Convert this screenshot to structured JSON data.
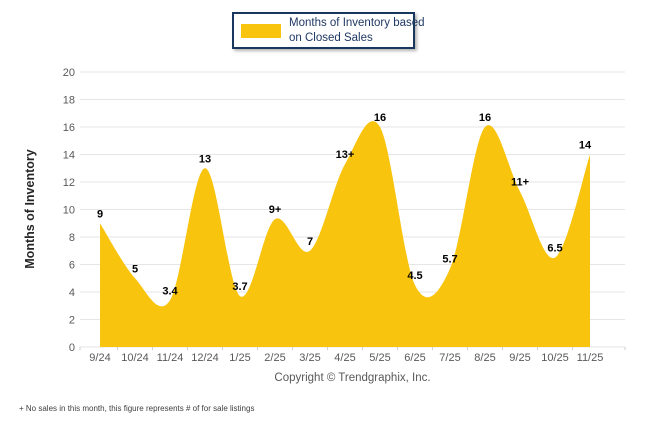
{
  "legend": {
    "line1": "Months of Inventory based",
    "line2": "on Closed Sales"
  },
  "chart_data": {
    "type": "area",
    "title": "Months of Inventory based on Closed Sales",
    "categories": [
      "9/24",
      "10/24",
      "11/24",
      "12/24",
      "1/25",
      "2/25",
      "3/25",
      "4/25",
      "5/25",
      "6/25",
      "7/25",
      "8/25",
      "9/25",
      "10/25",
      "11/25"
    ],
    "values": [
      9,
      5,
      3.4,
      13,
      3.7,
      9.3,
      7,
      13.3,
      16,
      4.5,
      5.7,
      16,
      11.3,
      6.5,
      14
    ],
    "point_labels": [
      "9",
      "5",
      "3.4",
      "13",
      "3.7",
      "9+",
      "7",
      "13+",
      "16",
      "4.5",
      "5.7",
      "16",
      "11+",
      "6.5",
      "14"
    ],
    "ylabel": "Months of Inventory",
    "xlabel": "",
    "ylim": [
      0,
      20
    ],
    "yticks": [
      0,
      2,
      4,
      6,
      8,
      10,
      12,
      14,
      16,
      18,
      20
    ],
    "grid": true,
    "legend_position": "top-center",
    "area_color": "#F8C40D",
    "gridline_color": "#E6E6E6",
    "axis_tick_color": "#CFCFCF",
    "tick_label_color": "#595959",
    "data_label_color": "#000000"
  },
  "footer": {
    "copyright": "Copyright © Trendgraphix, Inc.",
    "footnote": "+ No sales in this month, this figure represents # of for sale listings"
  },
  "colors": {
    "legend_border": "#17375E",
    "legend_text": "#1F3864",
    "background": "#FFFFFF"
  }
}
